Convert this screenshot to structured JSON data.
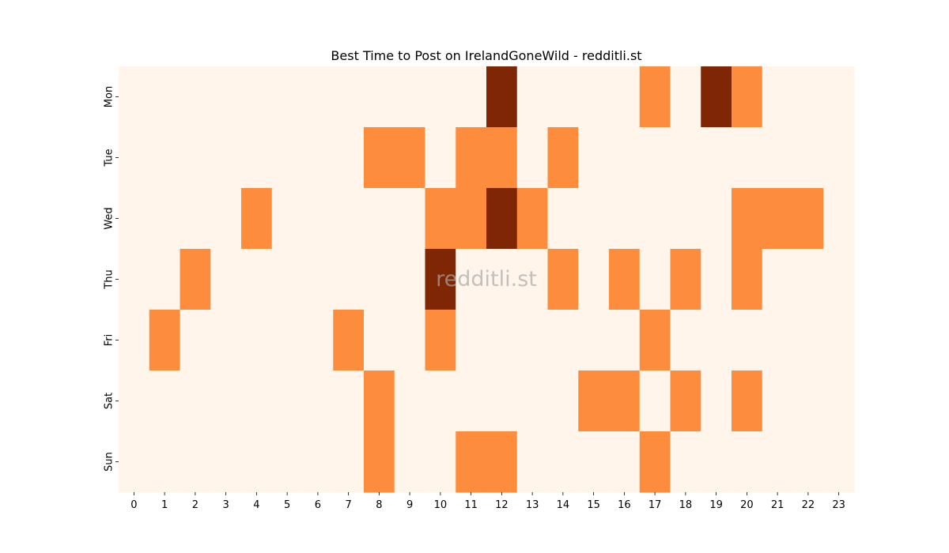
{
  "chart_data": {
    "type": "heatmap",
    "title": "Best Time to Post on IrelandGoneWild - redditli.st",
    "watermark": "redditli.st",
    "x": [
      "0",
      "1",
      "2",
      "3",
      "4",
      "5",
      "6",
      "7",
      "8",
      "9",
      "10",
      "11",
      "12",
      "13",
      "14",
      "15",
      "16",
      "17",
      "18",
      "19",
      "20",
      "21",
      "22",
      "23"
    ],
    "y": [
      "Mon",
      "Tue",
      "Wed",
      "Thu",
      "Fri",
      "Sat",
      "Sun"
    ],
    "values": [
      [
        0,
        0,
        0,
        0,
        0,
        0,
        0,
        0,
        0,
        0,
        0,
        0,
        2,
        0,
        0,
        0,
        0,
        1,
        0,
        2,
        1,
        0,
        0,
        0
      ],
      [
        0,
        0,
        0,
        0,
        0,
        0,
        0,
        0,
        1,
        1,
        0,
        1,
        1,
        0,
        1,
        0,
        0,
        0,
        0,
        0,
        0,
        0,
        0,
        0
      ],
      [
        0,
        0,
        0,
        0,
        1,
        0,
        0,
        0,
        0,
        0,
        1,
        1,
        2,
        1,
        0,
        0,
        0,
        0,
        0,
        0,
        1,
        1,
        1,
        0
      ],
      [
        0,
        0,
        1,
        0,
        0,
        0,
        0,
        0,
        0,
        0,
        2,
        0,
        0,
        0,
        1,
        0,
        1,
        0,
        1,
        0,
        1,
        0,
        0,
        0
      ],
      [
        0,
        1,
        0,
        0,
        0,
        0,
        0,
        1,
        0,
        0,
        1,
        0,
        0,
        0,
        0,
        0,
        0,
        1,
        0,
        0,
        0,
        0,
        0,
        0
      ],
      [
        0,
        0,
        0,
        0,
        0,
        0,
        0,
        0,
        1,
        0,
        0,
        0,
        0,
        0,
        0,
        1,
        1,
        0,
        1,
        0,
        1,
        0,
        0,
        0
      ],
      [
        0,
        0,
        0,
        0,
        0,
        0,
        0,
        0,
        1,
        0,
        0,
        1,
        1,
        0,
        0,
        0,
        0,
        1,
        0,
        0,
        0,
        0,
        0,
        0
      ]
    ],
    "colormap": {
      "0": "#fff5eb",
      "1": "#fd8d3c",
      "2": "#7f2704"
    },
    "xlabel": "",
    "ylabel": "",
    "grid": false,
    "legend": "none"
  }
}
